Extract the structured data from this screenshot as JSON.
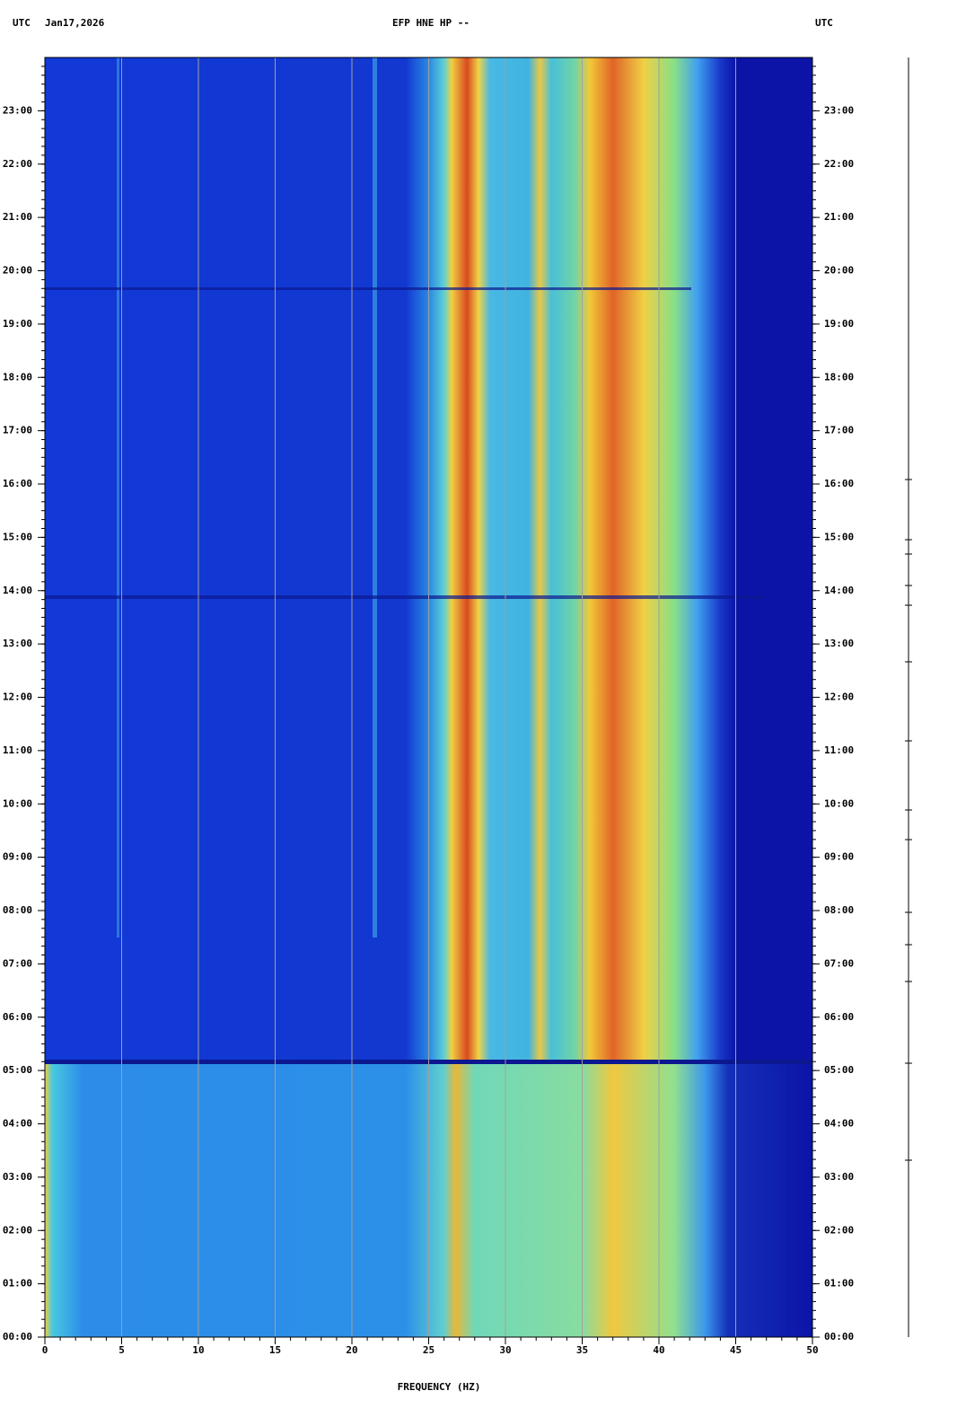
{
  "chart_data": {
    "type": "spectrogram",
    "title": "EFP HNE HP --",
    "time_zone_left": "UTC",
    "date": "Jan17,2026",
    "time_zone_right": "UTC",
    "xlabel": "FREQUENCY (HZ)",
    "xlim": [
      0,
      50
    ],
    "xticks": [
      0,
      5,
      10,
      15,
      20,
      25,
      30,
      35,
      40,
      45,
      50
    ],
    "ylim": [
      0,
      24
    ],
    "yticks": [
      {
        "value": 0,
        "label": "00:00"
      },
      {
        "value": 1,
        "label": "01:00"
      },
      {
        "value": 2,
        "label": "02:00"
      },
      {
        "value": 3,
        "label": "03:00"
      },
      {
        "value": 4,
        "label": "04:00"
      },
      {
        "value": 5,
        "label": "05:00"
      },
      {
        "value": 6,
        "label": "06:00"
      },
      {
        "value": 7,
        "label": "07:00"
      },
      {
        "value": 8,
        "label": "08:00"
      },
      {
        "value": 9,
        "label": "09:00"
      },
      {
        "value": 10,
        "label": "10:00"
      },
      {
        "value": 11,
        "label": "11:00"
      },
      {
        "value": 12,
        "label": "12:00"
      },
      {
        "value": 13,
        "label": "13:00"
      },
      {
        "value": 14,
        "label": "14:00"
      },
      {
        "value": 15,
        "label": "15:00"
      },
      {
        "value": 16,
        "label": "16:00"
      },
      {
        "value": 17,
        "label": "17:00"
      },
      {
        "value": 18,
        "label": "18:00"
      },
      {
        "value": 19,
        "label": "19:00"
      },
      {
        "value": 20,
        "label": "20:00"
      },
      {
        "value": 21,
        "label": "21:00"
      },
      {
        "value": 22,
        "label": "22:00"
      },
      {
        "value": 23,
        "label": "23:00"
      }
    ],
    "grid": true
  }
}
